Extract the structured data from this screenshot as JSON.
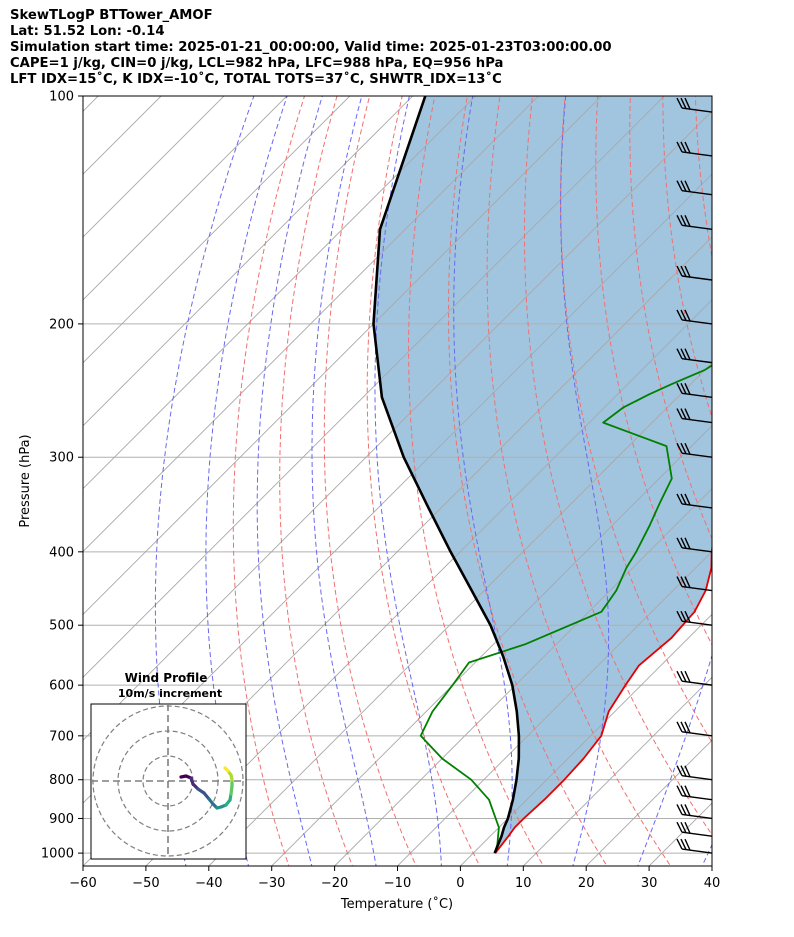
{
  "header": {
    "line1": "SkewTLogP BTTower_AMOF",
    "line2": "Lat: 51.52   Lon: -0.14",
    "line3": "Simulation start time: 2025-01-21_00:00:00, Valid time: 2025-01-23T03:00:00.00",
    "line4": "CAPE=1 j/kg, CIN=0 j/kg, LCL=982 hPa, LFC=988 hPa, EQ=956 hPa",
    "line5": "LFT IDX=15˚C, K IDX=-10˚C, TOTAL TOTS=37˚C, SHWTR_IDX=13˚C"
  },
  "chart_data": {
    "type": "line",
    "xlabel": "Temperature (˚C)",
    "ylabel": "Pressure (hPa)",
    "xlim": [
      -60,
      40
    ],
    "ylim": [
      1040,
      100
    ],
    "y_scale": "log",
    "skew": "temperature isotherms skewed 45 degrees",
    "x_ticks": [
      -60,
      -50,
      -40,
      -30,
      -20,
      -10,
      0,
      10,
      20,
      30,
      40
    ],
    "y_ticks": [
      1000,
      900,
      800,
      700,
      600,
      500,
      400,
      300,
      200,
      100
    ],
    "grid": true,
    "series": [
      {
        "role": "temperature",
        "color": "#e30000",
        "points": [
          [
            3.5,
            1000
          ],
          [
            3.2,
            975
          ],
          [
            2.9,
            950
          ],
          [
            2.5,
            925
          ],
          [
            2.5,
            900
          ],
          [
            2.8,
            850
          ],
          [
            2.8,
            800
          ],
          [
            2.5,
            750
          ],
          [
            1.7,
            700
          ],
          [
            -1,
            650
          ],
          [
            -2.5,
            600
          ],
          [
            -3.5,
            565
          ],
          [
            -2.7,
            520
          ],
          [
            -3.2,
            480
          ],
          [
            -4.8,
            450
          ],
          [
            -7.5,
            420
          ],
          [
            -10,
            400
          ],
          [
            -13.5,
            370
          ],
          [
            -16.5,
            345
          ],
          [
            -21,
            320
          ],
          [
            -21.8,
            295
          ],
          [
            -19,
            275
          ],
          [
            -20,
            260
          ],
          [
            -22,
            245
          ],
          [
            -24.5,
            230
          ],
          [
            -26.5,
            215
          ],
          [
            -29,
            200
          ],
          [
            -30.5,
            190
          ],
          [
            -31,
            180
          ],
          [
            -32,
            170
          ],
          [
            -32.5,
            160
          ],
          [
            -34,
            150
          ],
          [
            -35.5,
            140
          ],
          [
            -37.5,
            130
          ],
          [
            -39,
            120
          ],
          [
            -41.5,
            112
          ],
          [
            -42,
            105
          ],
          [
            -44,
            100
          ]
        ]
      },
      {
        "role": "dewpoint",
        "color": "#008000",
        "points": [
          [
            3.4,
            1000
          ],
          [
            2.5,
            975
          ],
          [
            0,
            925
          ],
          [
            -6,
            850
          ],
          [
            -12,
            800
          ],
          [
            -20,
            750
          ],
          [
            -27,
            700
          ],
          [
            -29,
            650
          ],
          [
            -30,
            600
          ],
          [
            -31,
            560
          ],
          [
            -25,
            530
          ],
          [
            -18,
            480
          ],
          [
            -19,
            450
          ],
          [
            -21,
            420
          ],
          [
            -22,
            400
          ],
          [
            -24,
            370
          ],
          [
            -26,
            345
          ],
          [
            -28,
            320
          ],
          [
            -34,
            290
          ],
          [
            -47.8,
            270
          ],
          [
            -47,
            258
          ],
          [
            -45,
            248
          ],
          [
            -43,
            240
          ],
          [
            -40,
            230
          ],
          [
            -38,
            215
          ],
          [
            -38,
            200
          ],
          [
            -39,
            185
          ],
          [
            -42,
            170
          ],
          [
            -45,
            160
          ],
          [
            -47,
            150
          ],
          [
            -50,
            140
          ],
          [
            -54,
            130
          ],
          [
            -58,
            120
          ],
          [
            -62,
            110
          ],
          [
            -66,
            100
          ]
        ]
      },
      {
        "role": "parcel",
        "color": "#000000",
        "points": [
          [
            3.4,
            1000
          ],
          [
            2.6,
            975
          ],
          [
            1.8,
            950
          ],
          [
            0.8,
            925
          ],
          [
            0,
            900
          ],
          [
            -2.2,
            850
          ],
          [
            -4.8,
            800
          ],
          [
            -7.8,
            750
          ],
          [
            -11.4,
            700
          ],
          [
            -15.6,
            650
          ],
          [
            -20.5,
            600
          ],
          [
            -26.5,
            550
          ],
          [
            -33.5,
            500
          ],
          [
            -42,
            450
          ],
          [
            -51.5,
            400
          ],
          [
            -62,
            350
          ],
          [
            -74,
            300
          ],
          [
            -87,
            250
          ],
          [
            -100,
            200
          ],
          [
            -114,
            150
          ],
          [
            -128,
            100
          ]
        ]
      }
    ],
    "wind_profile_inset": {
      "title": "Wind Profile",
      "subtitle": "10m/s increment",
      "ring_count": 3,
      "color_scale": "viridis"
    },
    "wind_barbs": {
      "levels": [
        1000,
        950,
        900,
        850,
        800,
        700,
        600,
        500,
        450,
        400,
        350,
        300,
        270,
        250,
        225,
        200,
        175,
        150,
        135,
        120,
        105
      ]
    }
  }
}
